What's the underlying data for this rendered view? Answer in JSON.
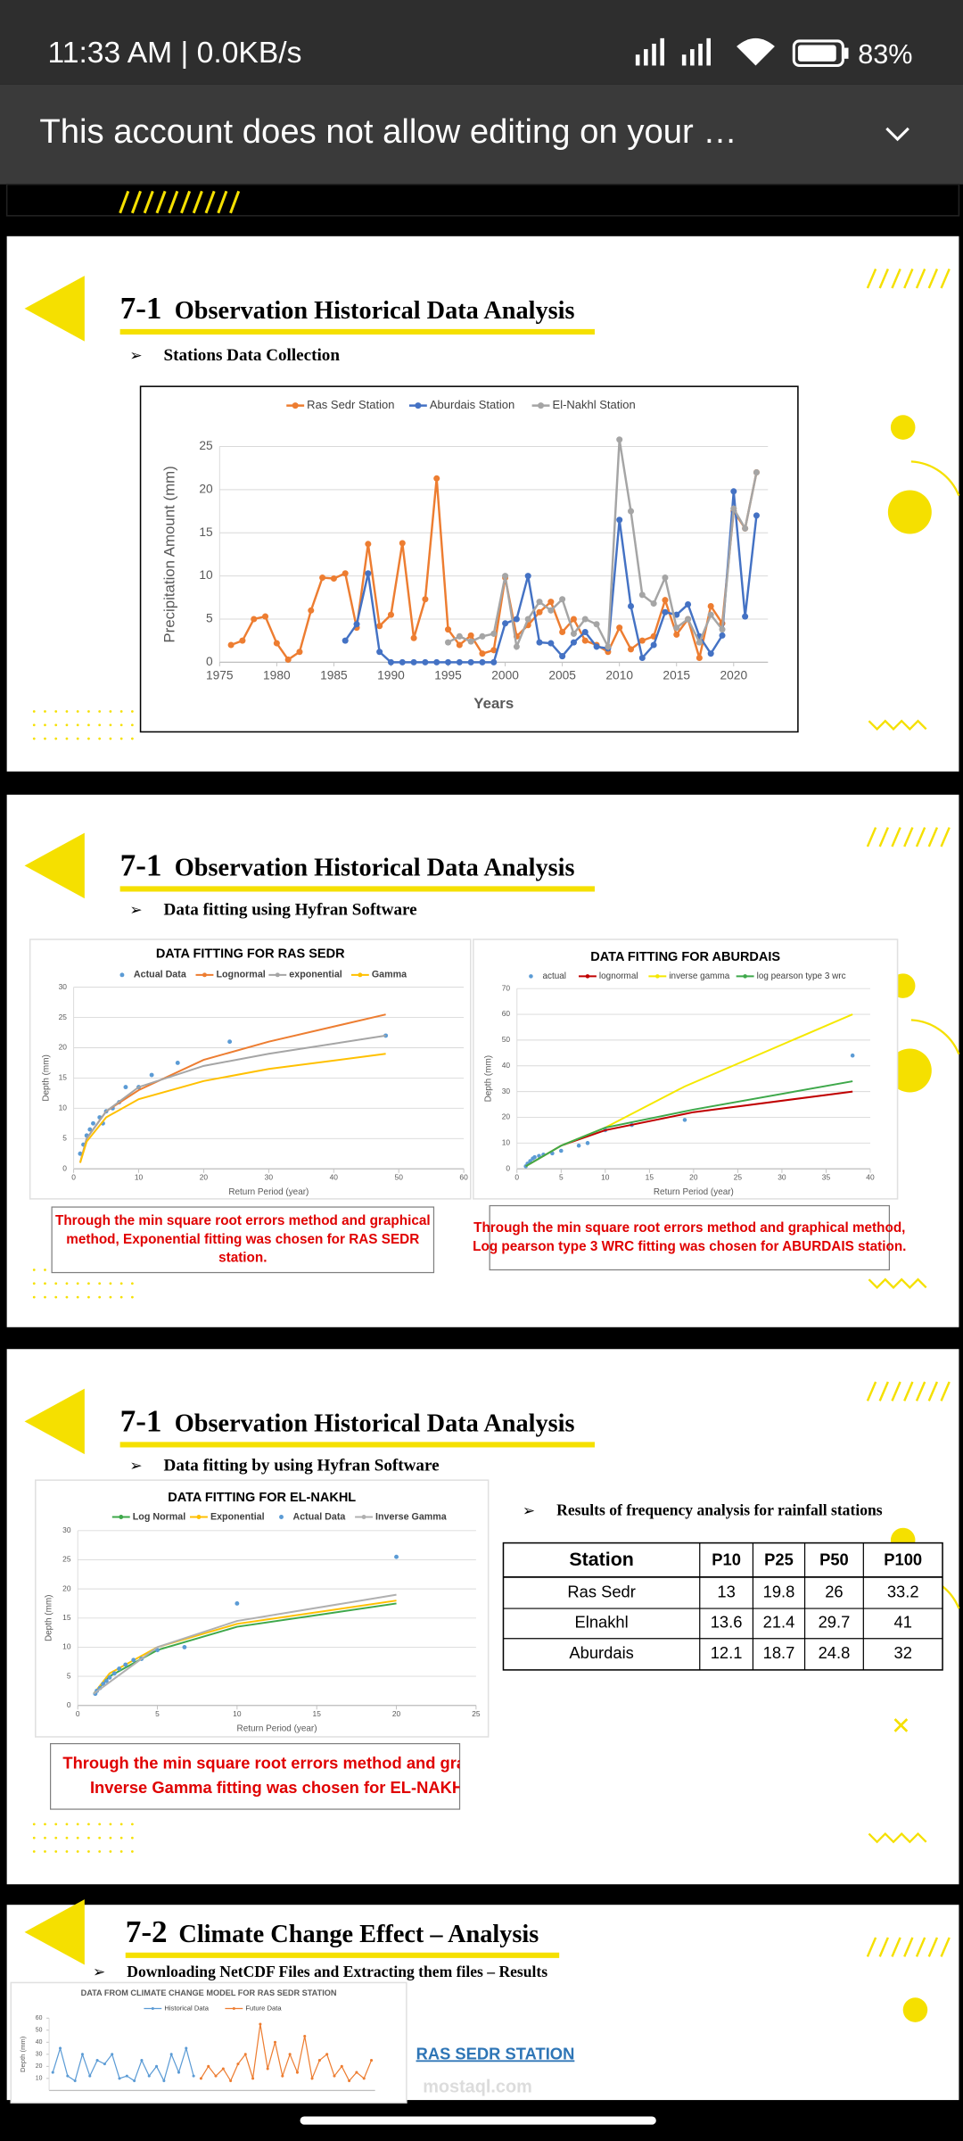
{
  "status_bar": {
    "time": "11:33 AM | 0.0KB/s",
    "battery": "83%"
  },
  "banner": {
    "text": "This account does not allow editing on your …"
  },
  "slides": [
    {
      "number": "7-1",
      "heading": "Observation Historical Data Analysis",
      "bullet": "Stations Data Collection",
      "chart_data": {
        "type": "line",
        "y_label": "Precipitation Amount (mm)",
        "x_label": "Years",
        "grid": true,
        "x": [
          1976,
          1977,
          1978,
          1979,
          1980,
          1981,
          1982,
          1983,
          1984,
          1985,
          1986,
          1987,
          1988,
          1989,
          1990,
          1991,
          1992,
          1993,
          1994,
          1995,
          1996,
          1997,
          1998,
          1999,
          2000,
          2001,
          2002,
          2003,
          2004,
          2005,
          2006,
          2007,
          2008,
          2009,
          2010,
          2011,
          2012,
          2013,
          2014,
          2015,
          2016,
          2017,
          2018,
          2019,
          2020,
          2021,
          2022
        ],
        "xlim": [
          1975,
          2023
        ],
        "xticks": [
          1975,
          1980,
          1985,
          1990,
          1995,
          2000,
          2005,
          2010,
          2015,
          2020
        ],
        "ylim": [
          0,
          25
        ],
        "yticks": [
          0,
          5,
          10,
          15,
          20,
          25
        ],
        "series": [
          {
            "name": "Ras Sedr Station",
            "color": "#ed7d31",
            "style": "line-markers",
            "values": [
              2,
              2.5,
              5,
              5.3,
              2.2,
              0.3,
              1.2,
              6,
              9.8,
              9.7,
              10.3,
              4,
              13.7,
              4.2,
              5.5,
              13.8,
              2.8,
              7.3,
              21.3,
              3.8,
              2,
              3.1,
              1,
              1.4,
              9.8,
              3,
              4.3,
              5.8,
              7,
              3.5,
              5,
              2.5,
              2,
              1.2,
              4,
              1.5,
              2.5,
              3,
              7.2,
              3.2,
              5,
              0.5,
              6.5,
              4.5,
              17.5,
              15.5,
              22
            ]
          },
          {
            "name": "Aburdais Station",
            "color": "#4472c4",
            "style": "line-markers",
            "values": [
              null,
              null,
              null,
              null,
              null,
              null,
              null,
              null,
              null,
              null,
              2.5,
              4.4,
              10.3,
              1.2,
              0,
              0,
              0,
              0,
              0,
              0,
              0,
              0,
              0,
              0,
              4.5,
              5,
              10,
              2.3,
              2.2,
              0.7,
              2.3,
              3.5,
              1.8,
              1.6,
              16.5,
              6.5,
              0.5,
              2,
              5.8,
              5.5,
              6.7,
              3,
              1,
              3.1,
              19.8,
              5.3,
              17
            ]
          },
          {
            "name": "El-Nakhl Station",
            "color": "#a5a5a5",
            "style": "line-markers",
            "values": [
              null,
              null,
              null,
              null,
              null,
              null,
              null,
              null,
              null,
              null,
              null,
              null,
              null,
              null,
              null,
              null,
              null,
              null,
              null,
              2.3,
              3,
              2.4,
              3,
              3.3,
              10,
              1.8,
              5,
              7,
              6,
              7.3,
              3.3,
              5,
              4.4,
              1.8,
              25.8,
              17.5,
              7.8,
              6.8,
              9.8,
              4,
              5,
              2.3,
              5.5,
              3.8,
              17.8,
              15.5,
              22
            ]
          }
        ]
      }
    },
    {
      "number": "7-1",
      "heading": "Observation Historical Data Analysis",
      "bullet": "Data fitting using Hyfran Software",
      "chart_data": [
        {
          "type": "line",
          "title": "DATA FITTING FOR RAS SEDR",
          "y_label": "Depth (mm)",
          "x_label": "Return Period (year)",
          "grid": true,
          "xlim": [
            0,
            60
          ],
          "xticks": [
            0,
            10,
            20,
            30,
            40,
            50,
            60
          ],
          "ylim": [
            0,
            30
          ],
          "yticks": [
            0,
            5,
            10,
            15,
            20,
            25,
            30
          ],
          "series": [
            {
              "name": "Actual Data",
              "color": "#5b9bd5",
              "style": "markers",
              "x": [
                1,
                1.5,
                2,
                2.5,
                3,
                4,
                4.5,
                5,
                6,
                7,
                8,
                10,
                12,
                16,
                24,
                48
              ],
              "values": [
                2.5,
                4,
                5.5,
                6.5,
                7.5,
                8.5,
                7.5,
                9.5,
                10,
                11,
                13.5,
                13.5,
                15.5,
                17.5,
                21,
                22
              ]
            },
            {
              "name": "Lognormal",
              "color": "#ed7d31",
              "style": "line",
              "x": [
                1,
                2,
                5,
                10,
                20,
                30,
                48
              ],
              "values": [
                1,
                5,
                9.5,
                13,
                18,
                21,
                25.5
              ]
            },
            {
              "name": "exponential",
              "color": "#a5a5a5",
              "style": "line",
              "x": [
                1,
                2,
                5,
                10,
                20,
                30,
                48
              ],
              "values": [
                1,
                5,
                9.5,
                13.5,
                17,
                19,
                22
              ]
            },
            {
              "name": "Gamma",
              "color": "#ffc000",
              "style": "line",
              "x": [
                1,
                2,
                5,
                10,
                20,
                30,
                48
              ],
              "values": [
                1,
                4.5,
                8.5,
                11.5,
                14.5,
                16.5,
                19
              ]
            }
          ]
        },
        {
          "type": "line",
          "title": "DATA FITTING FOR ABURDAIS",
          "y_label": "Depth (mm)",
          "x_label": "Return Period (year)",
          "grid": true,
          "xlim": [
            0,
            40
          ],
          "xticks": [
            0,
            5,
            10,
            15,
            20,
            25,
            30,
            35,
            40
          ],
          "ylim": [
            0,
            70
          ],
          "yticks": [
            0,
            10,
            20,
            30,
            40,
            50,
            60,
            70
          ],
          "series": [
            {
              "name": "actual",
              "color": "#5b9bd5",
              "style": "markers",
              "x": [
                1,
                1.2,
                1.5,
                1.8,
                2,
                2.5,
                3,
                4,
                5,
                7,
                8,
                10,
                13,
                19,
                38
              ],
              "values": [
                1,
                2,
                3,
                4,
                4.5,
                5,
                5.5,
                6,
                7,
                9,
                10,
                15,
                17,
                19,
                44
              ]
            },
            {
              "name": "lognormal",
              "color": "#c00000",
              "style": "line",
              "x": [
                1,
                5,
                10,
                20,
                38
              ],
              "values": [
                1,
                9,
                15,
                22,
                30
              ]
            },
            {
              "name": "inverse gamma",
              "color": "#f5e800",
              "style": "line",
              "x": [
                1,
                5,
                10,
                19,
                38
              ],
              "values": [
                1,
                9,
                16,
                32,
                60
              ]
            },
            {
              "name": "log pearson type 3 wrc",
              "color": "#3ea84a",
              "style": "line",
              "x": [
                1,
                5,
                10,
                20,
                38
              ],
              "values": [
                1,
                9,
                16,
                23,
                34
              ]
            }
          ]
        }
      ],
      "notes": [
        [
          "Through the min square root errors method and graphical",
          "method, Exponential fitting was chosen for RAS SEDR",
          "station."
        ],
        [
          "Through the min square root errors method and graphical method,",
          "Log pearson type 3 WRC fitting was chosen for ABURDAIS station."
        ]
      ]
    },
    {
      "number": "7-1",
      "heading": "Observation Historical Data Analysis",
      "bullet": "Data fitting by using Hyfran Software",
      "chart_data": {
        "type": "line",
        "title": "DATA FITTING FOR EL-NAKHL",
        "y_label": "Depth (mm)",
        "x_label": "Return Period (year)",
        "grid": true,
        "xlim": [
          0,
          25
        ],
        "xticks": [
          0,
          5,
          10,
          15,
          20,
          25
        ],
        "ylim": [
          0,
          30
        ],
        "yticks": [
          0,
          5,
          10,
          15,
          20,
          25,
          30
        ],
        "series": [
          {
            "name": "Log Normal",
            "color": "#3ea84a",
            "style": "line",
            "x": [
              1,
              2,
              5,
              10,
              20
            ],
            "values": [
              2,
              5,
              9.5,
              13.5,
              17.5
            ]
          },
          {
            "name": "Exponential",
            "color": "#ffc000",
            "style": "line",
            "x": [
              1,
              2,
              5,
              10,
              20
            ],
            "values": [
              2,
              5.5,
              10,
              14,
              18
            ]
          },
          {
            "name": "Actual Data",
            "color": "#5b9bd5",
            "style": "markers",
            "x": [
              1.1,
              1.2,
              1.4,
              1.6,
              1.8,
              2,
              2.3,
              2.6,
              3,
              3.5,
              4,
              5,
              6.7,
              10,
              20
            ],
            "values": [
              2,
              2.5,
              3,
              3.7,
              4.2,
              4.8,
              5.5,
              6.3,
              7,
              7.8,
              8,
              9.5,
              10,
              17.5,
              25.5
            ]
          },
          {
            "name": "Inverse Gamma",
            "color": "#b0b0b0",
            "style": "line",
            "x": [
              1,
              5,
              10,
              20
            ],
            "values": [
              2,
              10,
              14.5,
              19
            ]
          }
        ]
      },
      "notes": [
        [
          "Through the min square root errors method and grap",
          "Inverse Gamma fitting was chosen for EL-NAKHL s"
        ]
      ],
      "bullet_2": "Results of frequency analysis for rainfall stations",
      "table": {
        "header": [
          "Station",
          "P10",
          "P25",
          "P50",
          "P100"
        ],
        "rows": [
          [
            "Ras Sedr",
            13,
            19.8,
            26,
            33.2
          ],
          [
            "Elnakhl",
            13.6,
            21.4,
            29.7,
            41
          ],
          [
            "Aburdais",
            12.1,
            18.7,
            24.8,
            32
          ]
        ]
      }
    },
    {
      "number": "7-2",
      "heading": "Climate Change Effect – Analysis",
      "bullet": "Downloading NetCDF Files and Extracting them files – Results",
      "chart_data": {
        "type": "line",
        "title": "DATA FROM CLIMATE CHANGE MODEL FOR RAS SEDR STATION",
        "y_label": "Depth (mm)",
        "grid": false,
        "categories": [
          null,
          null,
          null,
          null,
          null,
          null,
          null,
          null,
          null,
          null,
          null,
          null,
          null,
          null,
          null,
          null,
          null,
          null,
          null,
          null,
          null,
          null,
          null,
          null,
          null,
          null,
          null,
          null,
          null,
          null,
          null,
          null,
          null,
          null,
          null,
          null,
          null,
          null,
          null,
          null,
          null,
          null,
          null,
          null
        ],
        "ylim": [
          0,
          60
        ],
        "yticks": [
          10,
          20,
          30,
          40,
          50,
          60
        ],
        "series": [
          {
            "name": "Historical Data",
            "color": "#5b9bd5",
            "style": "line-markers",
            "values": [
              15,
              35,
              12,
              8,
              30,
              12,
              25,
              22,
              30,
              10,
              12,
              8,
              25,
              12,
              20,
              8,
              30,
              15,
              35,
              12,
              null,
              null,
              null,
              null,
              null,
              null,
              null,
              null,
              null,
              null,
              null,
              null,
              null,
              null,
              null,
              null,
              null,
              null,
              null,
              null,
              null,
              null,
              null,
              null
            ]
          },
          {
            "name": "Future Data",
            "color": "#ed7d31",
            "style": "line-markers",
            "values": [
              null,
              null,
              null,
              null,
              null,
              null,
              null,
              null,
              null,
              null,
              null,
              null,
              null,
              null,
              null,
              null,
              null,
              null,
              null,
              null,
              10,
              20,
              12,
              18,
              8,
              22,
              30,
              10,
              55,
              18,
              40,
              12,
              30,
              15,
              45,
              10,
              25,
              30,
              12,
              20,
              8,
              15,
              10,
              25
            ]
          }
        ]
      },
      "link": "RAS SEDR STATION",
      "watermark": "mostaql.com"
    }
  ]
}
